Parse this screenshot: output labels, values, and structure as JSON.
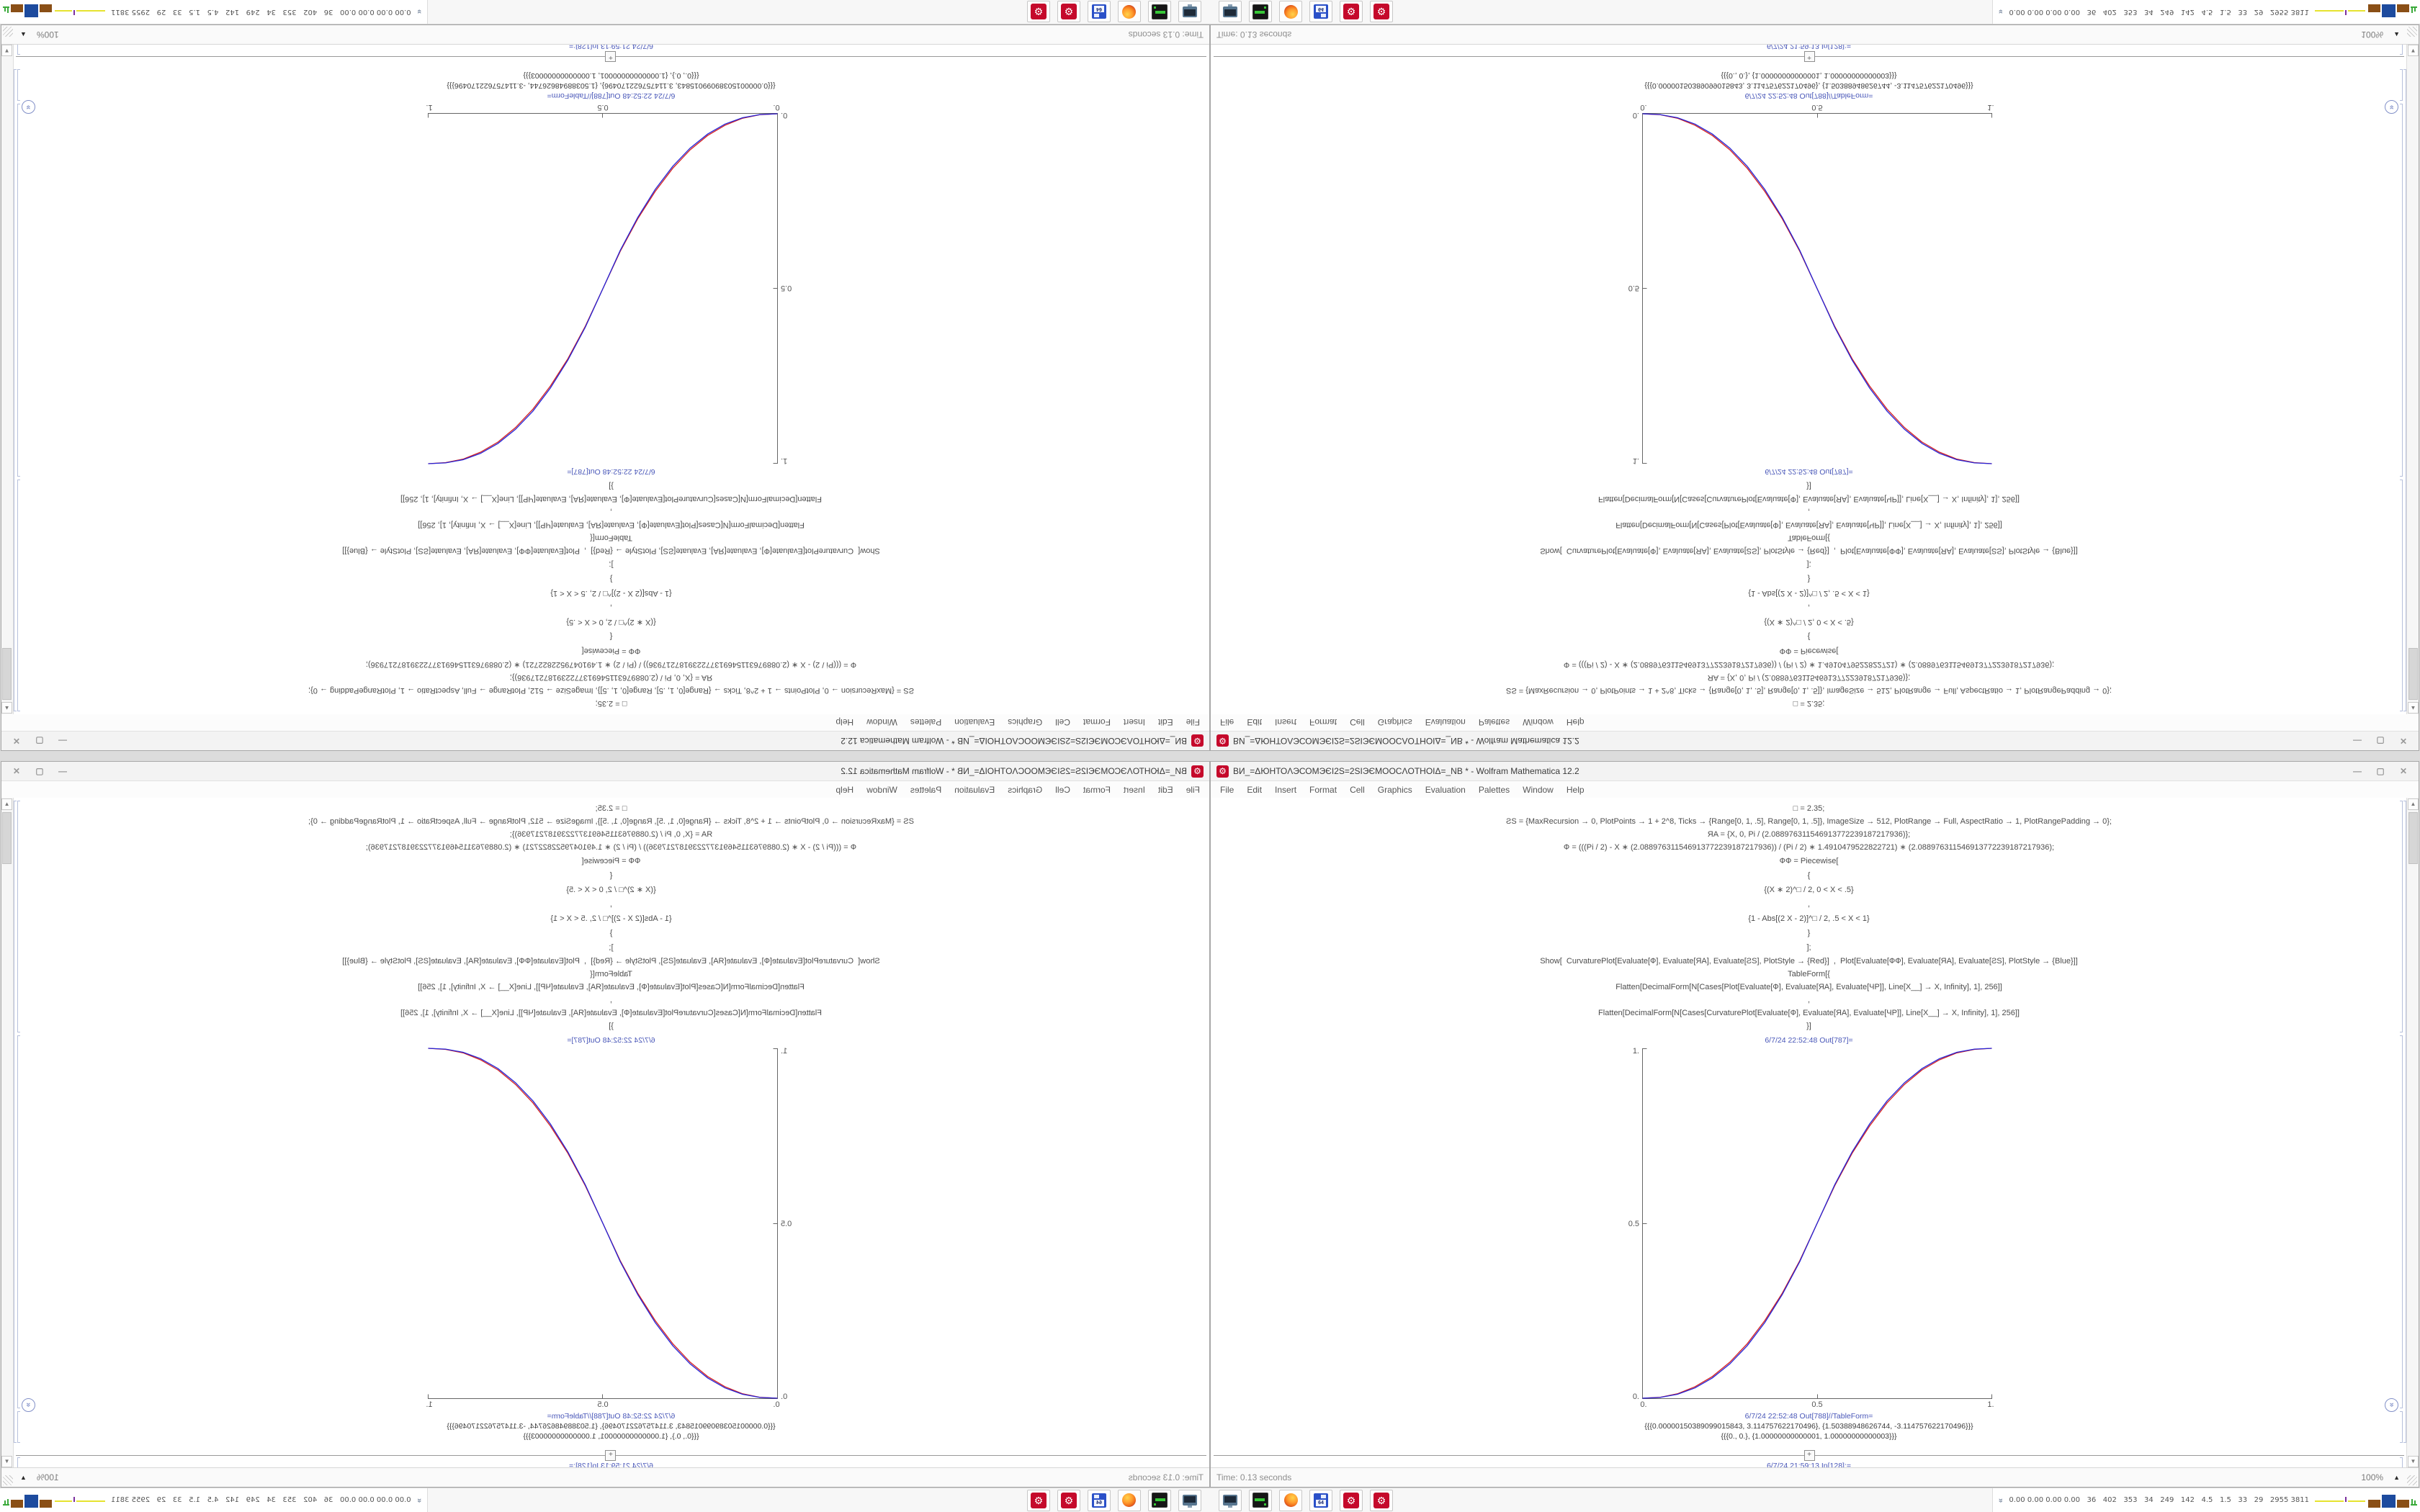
{
  "app": {
    "title": "ВИ_=ΔЮНТОΛЭСОМЭЄІ2Ѕ=2ЅІЭЄМООСΛОТНОІΔ=_NB * - Wolfram Mathematica 12.2",
    "app_icon_glyph": "⚙",
    "window_buttons": {
      "minimize": "—",
      "maximize": "▢",
      "close": "✕"
    },
    "menu": [
      "File",
      "Edit",
      "Insert",
      "Format",
      "Cell",
      "Graphics",
      "Evaluation",
      "Palettes",
      "Window",
      "Help"
    ]
  },
  "notebook": {
    "code_lines": [
      "□ = 2.35;",
      "ƧЅ = {MaxRecursion → 0, PlotPoints → 1 + 2^8, Ticks → {Range[0, 1, .5], Range[0, 1, .5]}, ImageSize → 512, PlotRange → Full, AspectRatio → 1, PlotRangePadding → 0};",
      "ЯΑ = {X, 0, Pi / (2.088976311546913772239187217936)};",
      "Ф = (((Pi / 2) - X ∗ (2.088976311546913772239187217936)) / (Pi / 2) ∗ 1.4910479522822721) ∗ (2.088976311546913772239187217936);",
      "ФФ = Piecewise[",
      "{",
      "{(X ∗ 2)^□ / 2, 0 < X < .5}",
      ",",
      "{1 - Abs[(2 X - 2)]^□ / 2, .5 < X < 1}",
      "}",
      "];",
      "Show[  CurvaturePlot[Evaluate[Ф], Evaluate[ЯΑ], Evaluate[ƧЅ], PlotStyle → {Red}]  ,  Plot[Evaluate[ФФ], Evaluate[ЯΑ], Evaluate[ƧЅ], PlotStyle → {Blue}]]",
      "TableForm[{",
      "Flatten[DecimalForm[N[Cases[Plot[Evaluate[Ф], Evaluate[ЯΑ], Evaluate[ЧΡ]], Line[X__] → X, Infinity], 1], 256]]",
      ",",
      "Flatten[DecimalForm[N[Cases[CurvaturePlot[Evaluate[Ф], Evaluate[ЯΑ], Evaluate[ЧΡ]], Line[X__] → X, Infinity], 1], 256]]",
      "}]"
    ],
    "out_plot_label": "6/7/24 22:52:48 Out[787]=",
    "out_table_label": "6/7/24 22:52:48 Out[788]//TableForm=",
    "out_table_rows": [
      "{{{0.00000150389099015843, 3.114757622170496}, {1.50388948626744, -3.114757622170496}}}",
      "{{{0., 0.}, {1.00000000000001, 1.00000000000003}}}"
    ],
    "in_label": "6/7/24 21:59:13 In[128]:=",
    "insert_button": "+",
    "jump_icon_glyph": "»"
  },
  "chart_data": {
    "type": "line",
    "title": "",
    "xlabel": "",
    "ylabel": "",
    "xlim": [
      0,
      1
    ],
    "ylim": [
      0,
      1
    ],
    "grid": false,
    "legend": "none",
    "xticks": [
      "0.",
      "0.5",
      "1."
    ],
    "yticks": [
      "0.",
      "0.5",
      "1."
    ],
    "series": [
      {
        "name": "CurvaturePlot Ф",
        "color": "#d42020",
        "points": [
          [
            0,
            0
          ],
          [
            0.05,
            0.0026
          ],
          [
            0.1,
            0.0127
          ],
          [
            0.15,
            0.0327
          ],
          [
            0.2,
            0.0622
          ],
          [
            0.25,
            0.103
          ],
          [
            0.3,
            0.156
          ],
          [
            0.35,
            0.222
          ],
          [
            0.4,
            0.3
          ],
          [
            0.45,
            0.393
          ],
          [
            0.5,
            0.5
          ],
          [
            0.55,
            0.607
          ],
          [
            0.6,
            0.7
          ],
          [
            0.65,
            0.778
          ],
          [
            0.7,
            0.844
          ],
          [
            0.75,
            0.897
          ],
          [
            0.8,
            0.938
          ],
          [
            0.85,
            0.967
          ],
          [
            0.9,
            0.987
          ],
          [
            0.95,
            0.997
          ],
          [
            1,
            1
          ]
        ]
      },
      {
        "name": "Plot ФФ",
        "color": "#2424d8",
        "points": [
          [
            0,
            0
          ],
          [
            0.05,
            0.0022
          ],
          [
            0.1,
            0.0114
          ],
          [
            0.15,
            0.0295
          ],
          [
            0.2,
            0.058
          ],
          [
            0.25,
            0.0981
          ],
          [
            0.3,
            0.1505
          ],
          [
            0.35,
            0.2163
          ],
          [
            0.4,
            0.296
          ],
          [
            0.45,
            0.3903
          ],
          [
            0.5,
            0.5
          ],
          [
            0.55,
            0.6097
          ],
          [
            0.6,
            0.704
          ],
          [
            0.65,
            0.7837
          ],
          [
            0.7,
            0.8495
          ],
          [
            0.75,
            0.9019
          ],
          [
            0.8,
            0.942
          ],
          [
            0.85,
            0.9705
          ],
          [
            0.9,
            0.9886
          ],
          [
            0.95,
            0.9978
          ],
          [
            1,
            1
          ]
        ]
      }
    ]
  },
  "status_bar": {
    "time": "Time: 0.13 seconds",
    "magnification": "100%"
  },
  "taskbar": {
    "apps": [
      "pc-monitor",
      "backup-drive",
      "firefox",
      "x64-floppy",
      "mathematica-window-1",
      "mathematica-window-2"
    ],
    "floppy_label": "64",
    "tray_chevron": "«",
    "tray_numbers": "0.00 0.00 0.00 0.00   36   402   353   34   249   142   4.5   1.5   33   29   2955 3811"
  }
}
